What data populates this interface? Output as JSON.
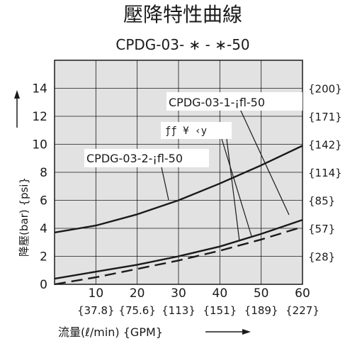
{
  "chart_data": {
    "type": "line",
    "title": "壓降特性曲線",
    "subtitle": "CPDG-03- ∗ - ∗-50",
    "xlabel": "流量(ℓ/min)  {GPM}",
    "ylabel": "降壓(bar)  {psi}",
    "xlim": [
      0,
      60
    ],
    "ylim": [
      0,
      16
    ],
    "grid": true,
    "x_ticks": [
      10,
      20,
      30,
      40,
      50,
      60
    ],
    "x_ticks_gpm": [
      "{37.8}",
      "{75.6}",
      "{113}",
      "{151}",
      "{189}",
      "{227}"
    ],
    "y_ticks": [
      0,
      2,
      4,
      6,
      8,
      10,
      12,
      14
    ],
    "y_ticks_psi": [
      {
        "label": "{28}",
        "y": 2
      },
      {
        "label": "{57}",
        "y": 4
      },
      {
        "label": "{85}",
        "y": 6
      },
      {
        "label": "{114}",
        "y": 8
      },
      {
        "label": "{142}",
        "y": 10
      },
      {
        "label": "{171}",
        "y": 12
      },
      {
        "label": "{200}",
        "y": 14
      }
    ],
    "annotations": [
      "CPDG-03-1-¡fl-50",
      "CPDG-03-2-¡fl-50",
      "ƒƒ ¥ ‹y"
    ],
    "series": [
      {
        "name": "CPDG-03-2-¡fl-50",
        "style": "solid",
        "x": [
          0,
          10,
          20,
          30,
          40,
          50,
          60
        ],
        "y": [
          3.7,
          4.2,
          5.0,
          6.0,
          7.2,
          8.5,
          9.9
        ]
      },
      {
        "name": "CPDG-03-1-¡fl-50",
        "style": "solid",
        "x": [
          0,
          10,
          20,
          30,
          40,
          50,
          60
        ],
        "y": [
          0.4,
          0.9,
          1.4,
          2.0,
          2.7,
          3.6,
          4.6
        ]
      },
      {
        "style": "dashed",
        "x": [
          0,
          10,
          20,
          30,
          40,
          50,
          60
        ],
        "y": [
          0.0,
          0.5,
          1.1,
          1.7,
          2.4,
          3.2,
          4.1
        ]
      }
    ]
  }
}
